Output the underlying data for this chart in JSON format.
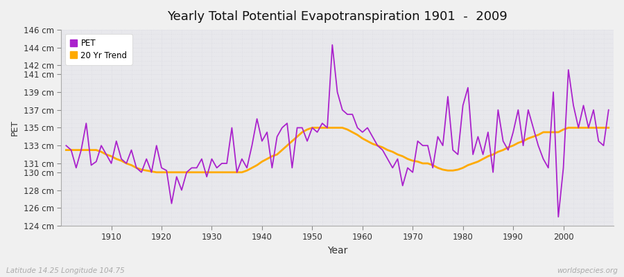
{
  "title": "Yearly Total Potential Evapotranspiration 1901  -  2009",
  "xlabel": "Year",
  "ylabel": "PET",
  "footnote_left": "Latitude 14.25 Longitude 104.75",
  "footnote_right": "worldspecies.org",
  "line_color": "#aa22cc",
  "trend_color": "#ffaa00",
  "fig_bg_color": "#f0f0f0",
  "plot_bg_color": "#e8e8ec",
  "grid_color": "#d8d8e0",
  "ylim": [
    124,
    146
  ],
  "ytick_vals": [
    124,
    126,
    128,
    130,
    131,
    133,
    135,
    137,
    139,
    141,
    142,
    144,
    146
  ],
  "xlim": [
    1900,
    2010
  ],
  "xtick_vals": [
    1910,
    1920,
    1930,
    1940,
    1950,
    1960,
    1970,
    1980,
    1990,
    2000
  ],
  "years": [
    1901,
    1902,
    1903,
    1904,
    1905,
    1906,
    1907,
    1908,
    1909,
    1910,
    1911,
    1912,
    1913,
    1914,
    1915,
    1916,
    1917,
    1918,
    1919,
    1920,
    1921,
    1922,
    1923,
    1924,
    1925,
    1926,
    1927,
    1928,
    1929,
    1930,
    1931,
    1932,
    1933,
    1934,
    1935,
    1936,
    1937,
    1938,
    1939,
    1940,
    1941,
    1942,
    1943,
    1944,
    1945,
    1946,
    1947,
    1948,
    1949,
    1950,
    1951,
    1952,
    1953,
    1954,
    1955,
    1956,
    1957,
    1958,
    1959,
    1960,
    1961,
    1962,
    1963,
    1964,
    1965,
    1966,
    1967,
    1968,
    1969,
    1970,
    1971,
    1972,
    1973,
    1974,
    1975,
    1976,
    1977,
    1978,
    1979,
    1980,
    1981,
    1982,
    1983,
    1984,
    1985,
    1986,
    1987,
    1988,
    1989,
    1990,
    1991,
    1992,
    1993,
    1994,
    1995,
    1996,
    1997,
    1998,
    1999,
    2000,
    2001,
    2002,
    2003,
    2004,
    2005,
    2006,
    2007,
    2008,
    2009
  ],
  "pet": [
    133.0,
    132.5,
    130.5,
    132.5,
    135.5,
    130.8,
    131.2,
    133.0,
    132.0,
    131.0,
    133.5,
    131.5,
    131.0,
    132.5,
    130.5,
    130.0,
    131.5,
    130.0,
    133.0,
    130.5,
    130.2,
    126.5,
    129.5,
    128.0,
    130.0,
    130.5,
    130.5,
    131.5,
    129.5,
    131.5,
    130.5,
    131.0,
    131.0,
    135.0,
    130.0,
    131.5,
    130.5,
    133.0,
    136.0,
    133.5,
    134.5,
    130.5,
    134.0,
    135.0,
    135.5,
    130.5,
    135.0,
    135.0,
    133.5,
    135.0,
    134.5,
    135.5,
    135.0,
    144.3,
    139.0,
    137.0,
    136.5,
    136.5,
    135.0,
    134.5,
    135.0,
    134.0,
    133.0,
    132.5,
    131.5,
    130.5,
    131.5,
    128.5,
    130.5,
    130.0,
    133.5,
    133.0,
    133.0,
    130.5,
    134.0,
    133.0,
    138.5,
    132.5,
    132.0,
    137.5,
    139.5,
    132.0,
    134.0,
    132.0,
    134.5,
    130.0,
    137.0,
    133.5,
    132.5,
    134.5,
    137.0,
    133.0,
    137.0,
    135.0,
    133.0,
    131.5,
    130.5,
    139.0,
    125.0,
    130.5,
    141.5,
    137.5,
    135.0,
    137.5,
    135.0,
    137.0,
    133.5,
    133.0,
    137.0
  ],
  "trend": [
    132.5,
    132.5,
    132.5,
    132.5,
    132.5,
    132.5,
    132.5,
    132.3,
    132.0,
    131.8,
    131.5,
    131.3,
    131.0,
    130.8,
    130.5,
    130.3,
    130.2,
    130.1,
    130.0,
    130.0,
    130.0,
    130.0,
    130.0,
    130.0,
    130.0,
    130.0,
    130.0,
    130.0,
    130.0,
    130.0,
    130.0,
    130.0,
    130.0,
    130.0,
    130.0,
    130.0,
    130.2,
    130.5,
    130.8,
    131.2,
    131.5,
    131.8,
    132.0,
    132.5,
    133.0,
    133.5,
    134.0,
    134.5,
    134.8,
    135.0,
    135.0,
    135.0,
    135.0,
    135.0,
    135.0,
    135.0,
    134.8,
    134.5,
    134.2,
    133.8,
    133.5,
    133.2,
    133.0,
    132.8,
    132.5,
    132.3,
    132.0,
    131.8,
    131.5,
    131.3,
    131.2,
    131.0,
    131.0,
    130.8,
    130.5,
    130.3,
    130.2,
    130.2,
    130.3,
    130.5,
    130.8,
    131.0,
    131.2,
    131.5,
    131.8,
    132.0,
    132.3,
    132.5,
    132.8,
    133.0,
    133.3,
    133.5,
    133.8,
    134.0,
    134.2,
    134.5,
    134.5,
    134.5,
    134.5,
    134.8,
    135.0,
    135.0,
    135.0,
    135.0,
    135.0,
    135.0,
    135.0,
    135.0,
    135.0
  ]
}
